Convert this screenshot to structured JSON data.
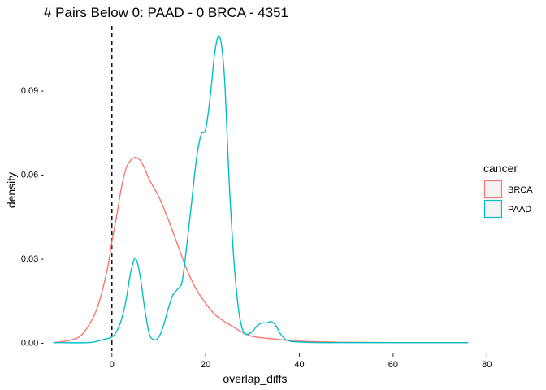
{
  "chart_data": {
    "type": "line",
    "title": "# Pairs Below 0: PAAD - 0 BRCA - 4351",
    "xlabel": "overlap_diffs",
    "ylabel": "density",
    "xlim": [
      -14,
      77
    ],
    "ylim": [
      -0.003,
      0.114
    ],
    "x_ticks": [
      0,
      20,
      40,
      60,
      80
    ],
    "y_ticks": [
      0.0,
      0.03,
      0.06,
      0.09
    ],
    "x_tick_labels": [
      "0",
      "20",
      "40",
      "60",
      "80"
    ],
    "y_tick_labels": [
      "0.00 -",
      "0.03 -",
      "0.06 -",
      "0.09 -"
    ],
    "grid": false,
    "vline": {
      "x": 0,
      "style": "dashed",
      "color": "#000000"
    },
    "legend": {
      "title": "cancer",
      "placement": "right"
    },
    "series": [
      {
        "name": "BRCA",
        "color": "#F8766D",
        "x": [
          -12.5,
          -10,
          -7,
          -5,
          -3,
          -1,
          0,
          1,
          2,
          3,
          4,
          5,
          6,
          7,
          8,
          10,
          12,
          14,
          16,
          18,
          20,
          22,
          24,
          26,
          28,
          30,
          35,
          40,
          50,
          60,
          70,
          76
        ],
        "y": [
          0.0,
          0.0005,
          0.002,
          0.006,
          0.013,
          0.026,
          0.036,
          0.045,
          0.055,
          0.062,
          0.065,
          0.066,
          0.065,
          0.062,
          0.058,
          0.052,
          0.044,
          0.035,
          0.026,
          0.019,
          0.014,
          0.01,
          0.0075,
          0.0055,
          0.0035,
          0.0022,
          0.0012,
          0.0005,
          0.0001,
          0.0,
          0.0,
          0.0
        ]
      },
      {
        "name": "PAAD",
        "color": "#00BFC4",
        "x": [
          -12.5,
          -5,
          -2,
          0,
          1,
          2,
          3,
          4,
          5,
          6,
          7,
          8,
          9,
          10,
          11,
          12,
          13,
          14,
          15,
          16,
          17,
          18,
          19,
          20,
          21,
          22,
          23,
          24,
          25,
          26,
          27,
          28,
          29,
          30,
          31,
          32,
          33,
          34,
          35,
          36,
          37,
          38,
          40,
          45,
          60,
          76
        ],
        "y": [
          0.0,
          0.0,
          0.001,
          0.002,
          0.004,
          0.008,
          0.015,
          0.025,
          0.03,
          0.024,
          0.012,
          0.003,
          0.001,
          0.002,
          0.006,
          0.012,
          0.017,
          0.019,
          0.022,
          0.035,
          0.05,
          0.065,
          0.074,
          0.076,
          0.088,
          0.104,
          0.109,
          0.095,
          0.058,
          0.03,
          0.012,
          0.004,
          0.003,
          0.004,
          0.006,
          0.007,
          0.007,
          0.0075,
          0.006,
          0.003,
          0.0012,
          0.0005,
          0.0002,
          0.0,
          0.0,
          0.0
        ]
      }
    ]
  }
}
